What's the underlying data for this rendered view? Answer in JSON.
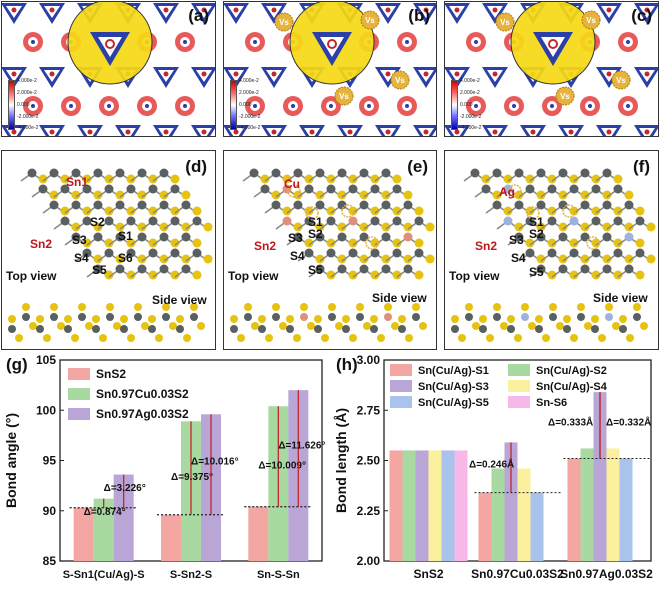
{
  "panels_top": [
    {
      "label": "(a)",
      "vs": false
    },
    {
      "label": "(b)",
      "vs": true
    },
    {
      "label": "(c)",
      "vs": true
    }
  ],
  "colorbar_ticks": [
    "4.000e-2",
    "2.000e-2",
    "0.000",
    "-2.000e-2",
    "-4.000e-2"
  ],
  "vs_label": "Vs",
  "panels_mid": [
    {
      "label": "(d)",
      "dopant": "Sn1"
    },
    {
      "label": "(e)",
      "dopant": "Cu"
    },
    {
      "label": "(f)",
      "dopant": "Ag"
    }
  ],
  "atom_labels": {
    "sn2": "Sn2",
    "s1": "S1",
    "s2": "S2",
    "s3": "S3",
    "s4": "S4",
    "s5": "S5",
    "s6": "S6"
  },
  "views": {
    "top": "Top view",
    "side": "Side view"
  },
  "colors": {
    "sn": "#59605f",
    "s": "#e6c310",
    "cu": "#e08f7a",
    "ag": "#9db3de",
    "vs": "#e6b33c"
  },
  "chart_g": {
    "label": "(g)",
    "type": "bar",
    "ylabel": "Bond angle (°)",
    "ylim": [
      85,
      105
    ],
    "yticks": [
      85,
      90,
      95,
      100,
      105
    ],
    "categories": [
      "S-Sn1(Cu/Ag)-S",
      "S-Sn2-S",
      "Sn-S-Sn"
    ],
    "series": [
      {
        "name": "SnS2",
        "color": "#f4a6a3",
        "values": [
          90.3,
          89.6,
          90.4
        ]
      },
      {
        "name": "Sn0.97Cu0.03S2",
        "color": "#a7d9a0",
        "values": [
          91.2,
          98.9,
          100.4
        ]
      },
      {
        "name": "Sn0.97Ag0.03S2",
        "color": "#b9a6d6",
        "values": [
          93.6,
          99.6,
          102.0
        ]
      }
    ],
    "annotations": [
      "Δ=0.874°",
      "Δ=3.226°",
      "Δ=9.375°",
      "Δ=10.016°",
      "Δ=10.009°",
      "Δ=11.626°"
    ]
  },
  "chart_h": {
    "label": "(h)",
    "type": "bar",
    "ylabel": "Bond length (Å)",
    "ylim": [
      2.0,
      3.0
    ],
    "yticks": [
      "2.00",
      "2.25",
      "2.50",
      "2.75",
      "3.00"
    ],
    "categories": [
      "SnS2",
      "Sn0.97Cu0.03S2",
      "Sn0.97Ag0.03S2"
    ],
    "series": [
      {
        "name": "Sn(Cu/Ag)-S1",
        "color": "#f4a6a3",
        "values": [
          2.55,
          2.34,
          2.51
        ]
      },
      {
        "name": "Sn(Cu/Ag)-S2",
        "color": "#a7d9a0",
        "values": [
          2.55,
          2.46,
          2.56
        ]
      },
      {
        "name": "Sn(Cu/Ag)-S3",
        "color": "#b9a6d6",
        "values": [
          2.55,
          2.59,
          2.84
        ]
      },
      {
        "name": "Sn(Cu/Ag)-S4",
        "color": "#fbf09e",
        "values": [
          2.55,
          2.46,
          2.56
        ]
      },
      {
        "name": "Sn(Cu/Ag)-S5",
        "color": "#a9c3ec",
        "values": [
          2.55,
          2.34,
          2.51
        ]
      },
      {
        "name": "Sn-S6",
        "color": "#f7b8e8",
        "values": [
          2.55,
          null,
          null
        ]
      }
    ],
    "annotations": [
      "Δ=0.246Å",
      "Δ=0.333Å",
      "Δ=0.332Å"
    ]
  }
}
